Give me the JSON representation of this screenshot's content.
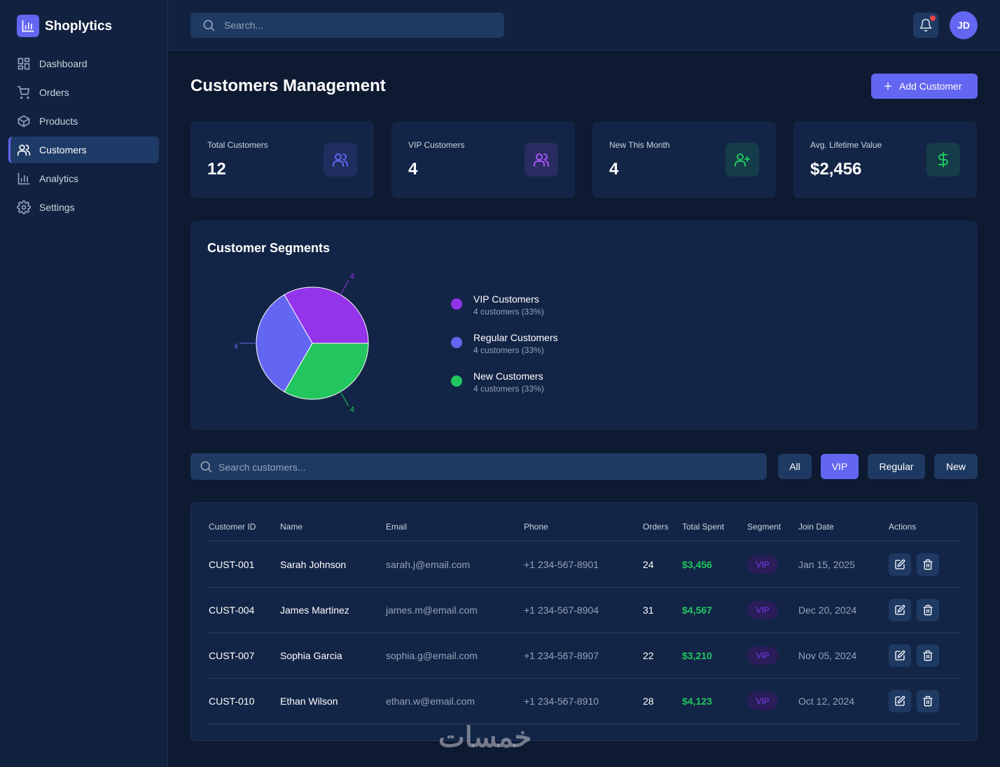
{
  "sidebar": {
    "brand": "Shoplytics",
    "nav": [
      "Dashboard",
      "Orders",
      "Products",
      "Customers",
      "Analytics",
      "Settings"
    ],
    "active": 3
  },
  "header": {
    "search_placeholder": "Search...",
    "avatar": "JD"
  },
  "page": {
    "title": "Customers Management",
    "add_button": "Add Customer"
  },
  "stats": [
    {
      "label": "Total Customers",
      "value": "12",
      "color": "#6366f1"
    },
    {
      "label": "VIP Customers",
      "value": "4",
      "color": "#a855f7"
    },
    {
      "label": "New This Month",
      "value": "4",
      "color": "#22c55e"
    },
    {
      "label": "Avg. Lifetime Value",
      "value": "$2,456",
      "color": "#22c55e"
    }
  ],
  "chart_data": {
    "type": "pie",
    "title": "Customer Segments",
    "categories": [
      "VIP Customers",
      "Regular Customers",
      "New Customers"
    ],
    "values": [
      4,
      4,
      4
    ],
    "colors": [
      "#9333ea",
      "#6366f1",
      "#22c55e"
    ],
    "details": [
      "4 customers (33%)",
      "4 customers (33%)",
      "4 customers (33%)"
    ]
  },
  "filters": {
    "search_placeholder": "Search customers...",
    "buttons": [
      "All",
      "VIP",
      "Regular",
      "New"
    ],
    "active": 1
  },
  "table": {
    "columns": [
      "Customer ID",
      "Name",
      "Email",
      "Phone",
      "Orders",
      "Total Spent",
      "Segment",
      "Join Date",
      "Actions"
    ],
    "rows": [
      [
        "CUST-001",
        "Sarah Johnson",
        "sarah.j@email.com",
        "+1 234-567-8901",
        "24",
        "$3,456",
        "VIP",
        "Jan 15, 2025"
      ],
      [
        "CUST-004",
        "James Martinez",
        "james.m@email.com",
        "+1 234-567-8904",
        "31",
        "$4,567",
        "VIP",
        "Dec 20, 2024"
      ],
      [
        "CUST-007",
        "Sophia Garcia",
        "sophia.g@email.com",
        "+1 234-567-8907",
        "22",
        "$3,210",
        "VIP",
        "Nov 05, 2024"
      ],
      [
        "CUST-010",
        "Ethan Wilson",
        "ethan.w@email.com",
        "+1 234-567-8910",
        "28",
        "$4,123",
        "VIP",
        "Oct 12, 2024"
      ]
    ]
  },
  "watermark": "خمسات"
}
